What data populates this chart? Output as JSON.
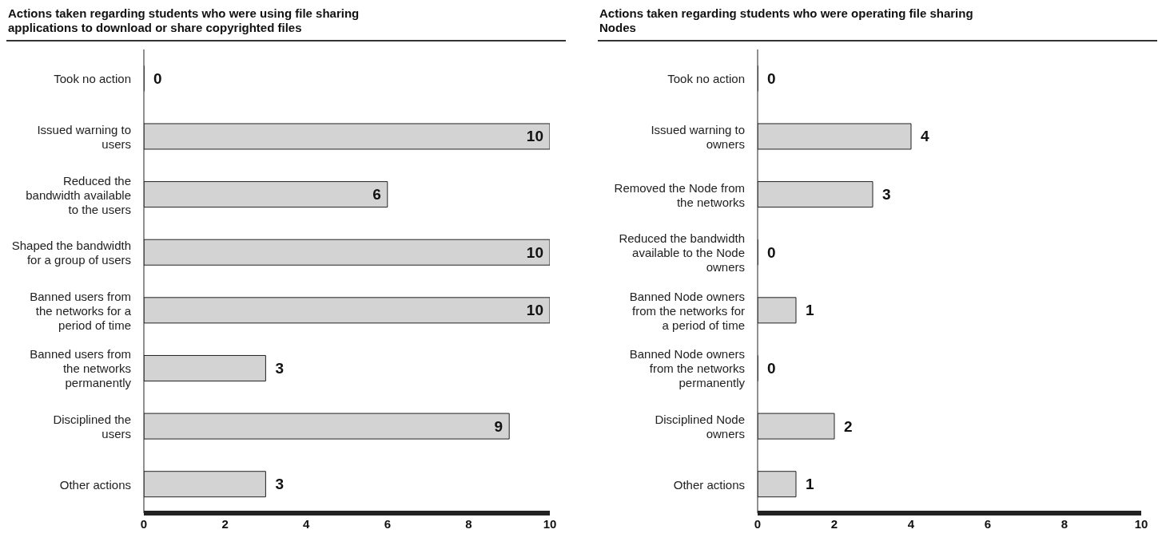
{
  "chart_data": [
    {
      "type": "bar",
      "orientation": "horizontal",
      "title": "Actions taken regarding students who were using file sharing applications to download or share copyrighted files",
      "categories": [
        "Took no action",
        "Issued warning to users",
        "Reduced the bandwidth available to the users",
        "Shaped the bandwidth for a group of users",
        "Banned users from the networks for a period of time",
        "Banned users from the networks permanently",
        "Disciplined the users",
        "Other actions"
      ],
      "values": [
        0,
        10,
        6,
        10,
        10,
        3,
        9,
        3
      ],
      "color": "#d3d3d3",
      "xlim": [
        0,
        10
      ],
      "xticks": [
        0,
        2,
        4,
        6,
        8,
        10
      ],
      "data_labels": true,
      "grid": false
    },
    {
      "type": "bar",
      "orientation": "horizontal",
      "title": "Actions taken regarding students who were operating file sharing Nodes",
      "categories": [
        "Took no action",
        "Issued warning to owners",
        "Removed the Node from the networks",
        "Reduced the bandwidth available to the Node owners",
        "Banned Node owners from the networks for a period of time",
        "Banned Node owners from the networks permanently",
        "Disciplined Node owners",
        "Other actions"
      ],
      "values": [
        0,
        4,
        3,
        0,
        1,
        0,
        2,
        1
      ],
      "color": "#d3d3d3",
      "xlim": [
        0,
        10
      ],
      "xticks": [
        0,
        2,
        4,
        6,
        8,
        10
      ],
      "data_labels": true,
      "grid": false
    }
  ]
}
